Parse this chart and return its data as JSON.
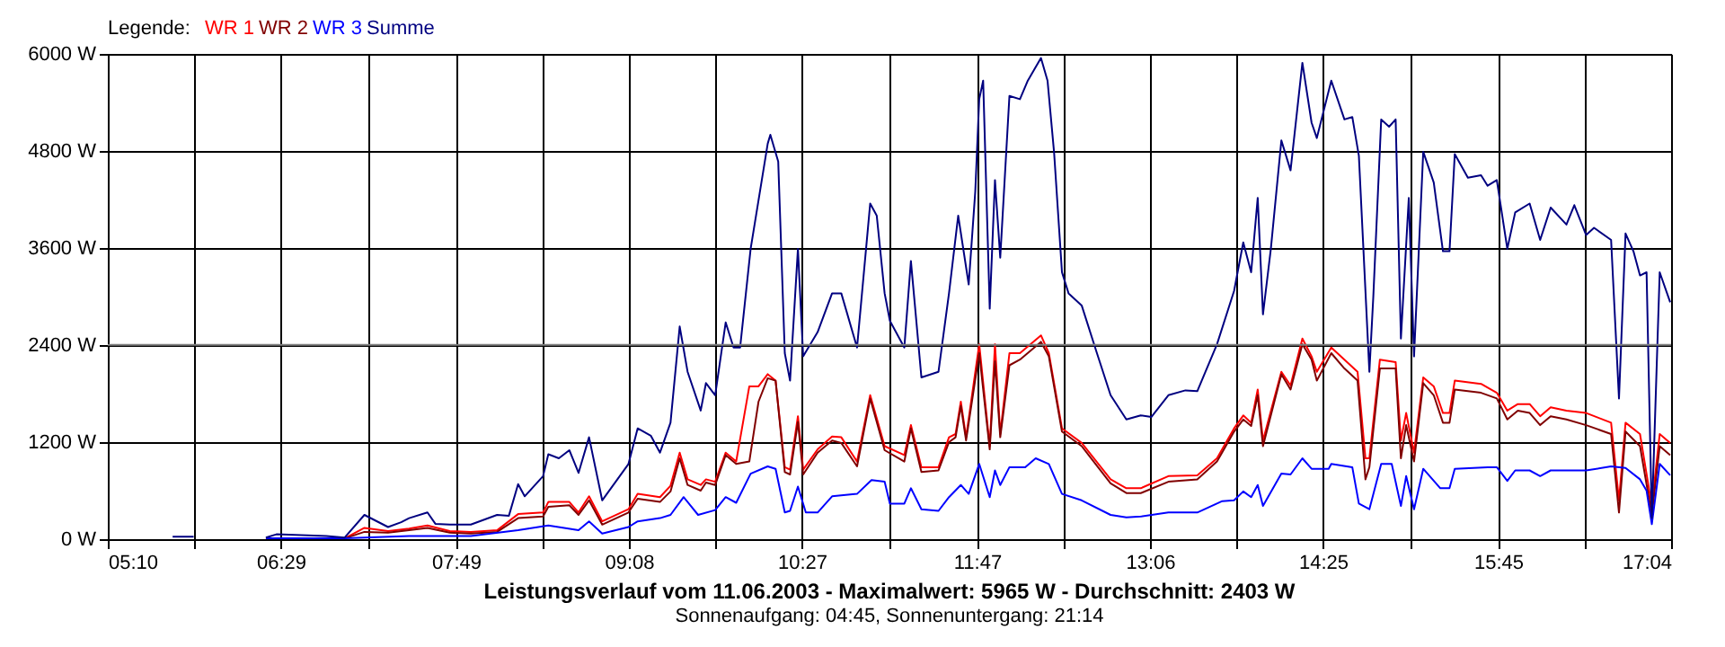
{
  "chart_data": {
    "type": "line",
    "title": "Leistungsverlauf vom 11.06.2003 - Maximalwert: 5965 W - Durchschnitt: 2403 W",
    "subtitle": "Sonnenaufgang: 04:45, Sonnenuntergang: 21:14",
    "legend_title": "Legende:",
    "legend": "top left",
    "grid": true,
    "line_style": "solid",
    "xlim": [
      5.1667,
      17.0667
    ],
    "xticks": [
      {
        "value": 5.1667,
        "label": "05:10"
      },
      {
        "value": 5.825,
        "label": null
      },
      {
        "value": 6.4833,
        "label": "06:29"
      },
      {
        "value": 7.15,
        "label": null
      },
      {
        "value": 7.8167,
        "label": "07:49"
      },
      {
        "value": 8.475,
        "label": null
      },
      {
        "value": 9.1333,
        "label": "09:08"
      },
      {
        "value": 9.79,
        "label": null
      },
      {
        "value": 10.45,
        "label": "10:27"
      },
      {
        "value": 11.12,
        "label": null
      },
      {
        "value": 11.7833,
        "label": "11:47"
      },
      {
        "value": 12.44,
        "label": null
      },
      {
        "value": 13.1,
        "label": "13:06"
      },
      {
        "value": 13.76,
        "label": null
      },
      {
        "value": 14.4167,
        "label": "14:25"
      },
      {
        "value": 15.08,
        "label": null
      },
      {
        "value": 15.75,
        "label": "15:45"
      },
      {
        "value": 16.41,
        "label": null
      },
      {
        "value": 17.0667,
        "label": "17:04"
      }
    ],
    "ylim": [
      0,
      6000
    ],
    "yticks": [
      {
        "value": 0,
        "label": "0 W"
      },
      {
        "value": 1200,
        "label": "1200 W"
      },
      {
        "value": 2400,
        "label": "2400 W"
      },
      {
        "value": 3600,
        "label": "3600 W"
      },
      {
        "value": 4800,
        "label": "4800 W"
      },
      {
        "value": 6000,
        "label": "6000 W"
      }
    ],
    "ref_lines": [
      {
        "axis": "y",
        "value": 2403,
        "label": null,
        "color": "#808080"
      }
    ],
    "series": [
      {
        "name": "WR 1",
        "color": "#ff0000",
        "x": [
          6.37,
          6.97,
          7.12,
          7.3,
          7.46,
          7.6,
          7.77,
          7.93,
          8.13,
          8.29,
          8.48,
          8.52,
          8.68,
          8.75,
          8.83,
          8.93,
          9.13,
          9.2,
          9.37,
          9.45,
          9.52,
          9.58,
          9.68,
          9.72,
          9.79,
          9.87,
          9.95,
          10.05,
          10.12,
          10.19,
          10.25,
          10.32,
          10.36,
          10.42,
          10.46,
          10.57,
          10.68,
          10.75,
          10.87,
          10.97,
          11.08,
          11.23,
          11.28,
          11.36,
          11.49,
          11.57,
          11.62,
          11.66,
          11.7,
          11.8,
          11.88,
          11.92,
          11.96,
          12.03,
          12.11,
          12.27,
          12.33,
          12.43,
          12.58,
          12.8,
          12.92,
          13.03,
          13.24,
          13.46,
          13.61,
          13.74,
          13.81,
          13.87,
          13.92,
          13.96,
          14.1,
          14.17,
          14.26,
          14.33,
          14.37,
          14.48,
          14.58,
          14.68,
          14.74,
          14.77,
          14.85,
          14.97,
          15.01,
          15.05,
          15.11,
          15.18,
          15.26,
          15.33,
          15.38,
          15.42,
          15.62,
          15.74,
          15.82,
          15.9,
          15.99,
          16.07,
          16.15,
          16.27,
          16.42,
          16.61,
          16.67,
          16.72,
          16.83,
          16.92,
          16.98,
          17.06
        ],
        "values": [
          10,
          10,
          140,
          100,
          130,
          170,
          100,
          90,
          110,
          310,
          330,
          460,
          460,
          330,
          530,
          220,
          370,
          560,
          520,
          660,
          1070,
          740,
          670,
          740,
          710,
          1070,
          960,
          1890,
          1890,
          2040,
          1960,
          890,
          860,
          1520,
          860,
          1110,
          1270,
          1260,
          960,
          1780,
          1150,
          1040,
          1410,
          890,
          890,
          1260,
          1300,
          1700,
          1260,
          2410,
          1150,
          2410,
          1300,
          2300,
          2300,
          2520,
          2300,
          1370,
          1190,
          740,
          630,
          630,
          780,
          790,
          1000,
          1370,
          1530,
          1440,
          1850,
          1220,
          2070,
          1900,
          2480,
          2260,
          2070,
          2370,
          2220,
          2070,
          1000,
          1000,
          2220,
          2190,
          1220,
          1560,
          1070,
          2000,
          1890,
          1560,
          1560,
          1960,
          1920,
          1810,
          1590,
          1670,
          1670,
          1520,
          1630,
          1590,
          1560,
          1440,
          480,
          1440,
          1300,
          410,
          1300,
          1190
        ]
      },
      {
        "name": "WR 2",
        "color": "#800000",
        "x": [
          6.37,
          6.97,
          7.12,
          7.3,
          7.46,
          7.6,
          7.77,
          7.93,
          8.13,
          8.29,
          8.48,
          8.52,
          8.68,
          8.75,
          8.83,
          8.93,
          9.13,
          9.2,
          9.37,
          9.45,
          9.52,
          9.58,
          9.68,
          9.72,
          9.79,
          9.87,
          9.95,
          10.05,
          10.12,
          10.19,
          10.25,
          10.32,
          10.36,
          10.42,
          10.46,
          10.57,
          10.68,
          10.75,
          10.87,
          10.97,
          11.08,
          11.23,
          11.28,
          11.36,
          11.49,
          11.57,
          11.62,
          11.66,
          11.7,
          11.8,
          11.88,
          11.92,
          11.96,
          12.03,
          12.11,
          12.27,
          12.33,
          12.43,
          12.58,
          12.8,
          12.92,
          13.03,
          13.24,
          13.46,
          13.61,
          13.74,
          13.81,
          13.87,
          13.92,
          13.96,
          14.1,
          14.17,
          14.26,
          14.33,
          14.37,
          14.48,
          14.58,
          14.68,
          14.74,
          14.77,
          14.85,
          14.97,
          15.01,
          15.05,
          15.11,
          15.18,
          15.26,
          15.33,
          15.38,
          15.42,
          15.62,
          15.74,
          15.82,
          15.9,
          15.99,
          16.07,
          16.15,
          16.27,
          16.42,
          16.61,
          16.67,
          16.72,
          16.83,
          16.92,
          16.98,
          17.06
        ],
        "values": [
          10,
          10,
          90,
          80,
          110,
          140,
          80,
          70,
          90,
          260,
          280,
          400,
          420,
          300,
          480,
          180,
          330,
          500,
          460,
          590,
          1000,
          670,
          600,
          700,
          670,
          1040,
          930,
          960,
          1700,
          1990,
          1960,
          830,
          800,
          1450,
          800,
          1070,
          1220,
          1190,
          900,
          1740,
          1100,
          960,
          1370,
          830,
          850,
          1200,
          1260,
          1650,
          1220,
          2300,
          1110,
          2200,
          1260,
          2150,
          2220,
          2440,
          2260,
          1330,
          1150,
          690,
          570,
          570,
          710,
          740,
          960,
          1330,
          1480,
          1400,
          1780,
          1150,
          2040,
          1850,
          2410,
          2220,
          1960,
          2300,
          2110,
          1960,
          740,
          890,
          2110,
          2110,
          1000,
          1410,
          960,
          1930,
          1780,
          1440,
          1440,
          1850,
          1810,
          1740,
          1480,
          1590,
          1560,
          1410,
          1520,
          1480,
          1410,
          1300,
          330,
          1330,
          1150,
          300,
          1150,
          1040
        ]
      },
      {
        "name": "WR 3",
        "color": "#0000ff",
        "x": [
          6.37,
          6.97,
          7.12,
          7.46,
          7.77,
          7.93,
          8.29,
          8.52,
          8.75,
          8.83,
          8.93,
          9.13,
          9.2,
          9.37,
          9.45,
          9.55,
          9.66,
          9.79,
          9.87,
          9.95,
          10.06,
          10.19,
          10.25,
          10.32,
          10.36,
          10.42,
          10.48,
          10.57,
          10.68,
          10.87,
          10.98,
          11.08,
          11.12,
          11.23,
          11.28,
          11.36,
          11.49,
          11.57,
          11.66,
          11.72,
          11.8,
          11.88,
          11.92,
          11.96,
          12.03,
          12.15,
          12.23,
          12.33,
          12.43,
          12.58,
          12.8,
          12.92,
          13.03,
          13.24,
          13.46,
          13.65,
          13.74,
          13.81,
          13.87,
          13.92,
          13.96,
          14.1,
          14.17,
          14.26,
          14.33,
          14.46,
          14.48,
          14.64,
          14.69,
          14.77,
          14.86,
          14.94,
          15.01,
          15.05,
          15.11,
          15.18,
          15.31,
          15.38,
          15.42,
          15.67,
          15.74,
          15.82,
          15.88,
          15.99,
          16.07,
          16.15,
          16.42,
          16.61,
          16.72,
          16.83,
          16.88,
          16.92,
          16.98,
          17.06
        ],
        "values": [
          10,
          10,
          20,
          40,
          40,
          40,
          110,
          170,
          110,
          220,
          70,
          150,
          220,
          260,
          300,
          520,
          300,
          360,
          520,
          450,
          810,
          900,
          870,
          330,
          350,
          650,
          330,
          330,
          530,
          560,
          730,
          710,
          440,
          440,
          630,
          370,
          350,
          520,
          670,
          560,
          930,
          520,
          850,
          670,
          890,
          890,
          1000,
          930,
          560,
          480,
          300,
          270,
          280,
          330,
          330,
          470,
          480,
          590,
          520,
          670,
          410,
          810,
          800,
          1000,
          870,
          870,
          930,
          890,
          440,
          370,
          930,
          930,
          410,
          780,
          370,
          870,
          630,
          630,
          870,
          890,
          890,
          720,
          850,
          850,
          780,
          850,
          850,
          900,
          880,
          740,
          600,
          185,
          930,
          790
        ]
      },
      {
        "name": "Summe",
        "color": "#000080",
        "x": [
          5.66,
          5.82,
          6.1,
          6.37,
          6.45,
          6.83,
          6.97,
          7.12,
          7.3,
          7.4,
          7.46,
          7.6,
          7.66,
          7.77,
          7.93,
          8.13,
          8.22,
          8.29,
          8.34,
          8.48,
          8.52,
          8.6,
          8.68,
          8.75,
          8.83,
          8.93,
          9.13,
          9.2,
          9.3,
          9.37,
          9.45,
          9.52,
          9.58,
          9.68,
          9.72,
          9.79,
          9.87,
          9.93,
          9.98,
          10.06,
          10.19,
          10.21,
          10.27,
          10.32,
          10.36,
          10.42,
          10.46,
          10.57,
          10.68,
          10.75,
          10.87,
          10.97,
          11.02,
          11.08,
          11.12,
          11.23,
          11.28,
          11.36,
          11.49,
          11.57,
          11.64,
          11.72,
          11.77,
          11.8,
          11.83,
          11.88,
          11.92,
          11.96,
          12.03,
          12.11,
          12.17,
          12.27,
          12.32,
          12.37,
          12.43,
          12.48,
          12.58,
          12.69,
          12.8,
          12.92,
          13.03,
          13.11,
          13.24,
          13.37,
          13.46,
          13.61,
          13.74,
          13.81,
          13.87,
          13.92,
          13.96,
          14.02,
          14.1,
          14.17,
          14.26,
          14.33,
          14.37,
          14.48,
          14.58,
          14.64,
          14.69,
          14.77,
          14.8,
          14.86,
          14.92,
          14.97,
          15.01,
          15.07,
          15.11,
          15.18,
          15.26,
          15.33,
          15.38,
          15.42,
          15.52,
          15.62,
          15.67,
          15.74,
          15.82,
          15.88,
          15.99,
          16.07,
          16.15,
          16.27,
          16.33,
          16.42,
          16.48,
          16.61,
          16.67,
          16.72,
          16.78,
          16.83,
          16.88,
          16.92,
          16.98,
          17.06
        ],
        "values": [
          30,
          30,
          null,
          20,
          60,
          40,
          20,
          300,
          150,
          210,
          260,
          330,
          190,
          180,
          180,
          300,
          290,
          680,
          530,
          780,
          1050,
          1000,
          1100,
          820,
          1260,
          480,
          930,
          1370,
          1280,
          1070,
          1440,
          2630,
          2070,
          1590,
          1930,
          1780,
          2680,
          2370,
          2370,
          3590,
          4890,
          5000,
          4670,
          2300,
          1960,
          3590,
          2260,
          2560,
          3040,
          3040,
          2370,
          4150,
          4000,
          3040,
          2700,
          2370,
          3440,
          2000,
          2070,
          3040,
          4000,
          3150,
          4300,
          5440,
          5670,
          2850,
          4440,
          3480,
          5480,
          5440,
          5670,
          5950,
          5670,
          4780,
          3300,
          3040,
          2890,
          2330,
          1780,
          1480,
          1530,
          1510,
          1780,
          1840,
          1830,
          2410,
          3070,
          3670,
          3300,
          4220,
          2780,
          3590,
          4930,
          4560,
          5890,
          5150,
          4960,
          5670,
          5190,
          5220,
          4740,
          2070,
          3000,
          5190,
          5100,
          5190,
          2480,
          4220,
          2260,
          4790,
          4410,
          3560,
          3560,
          4760,
          4470,
          4500,
          4370,
          4440,
          3590,
          4040,
          4150,
          3700,
          4100,
          3890,
          4130,
          3760,
          3850,
          3700,
          1740,
          3780,
          3560,
          3260,
          3300,
          260,
          3300,
          2930
        ]
      }
    ]
  }
}
